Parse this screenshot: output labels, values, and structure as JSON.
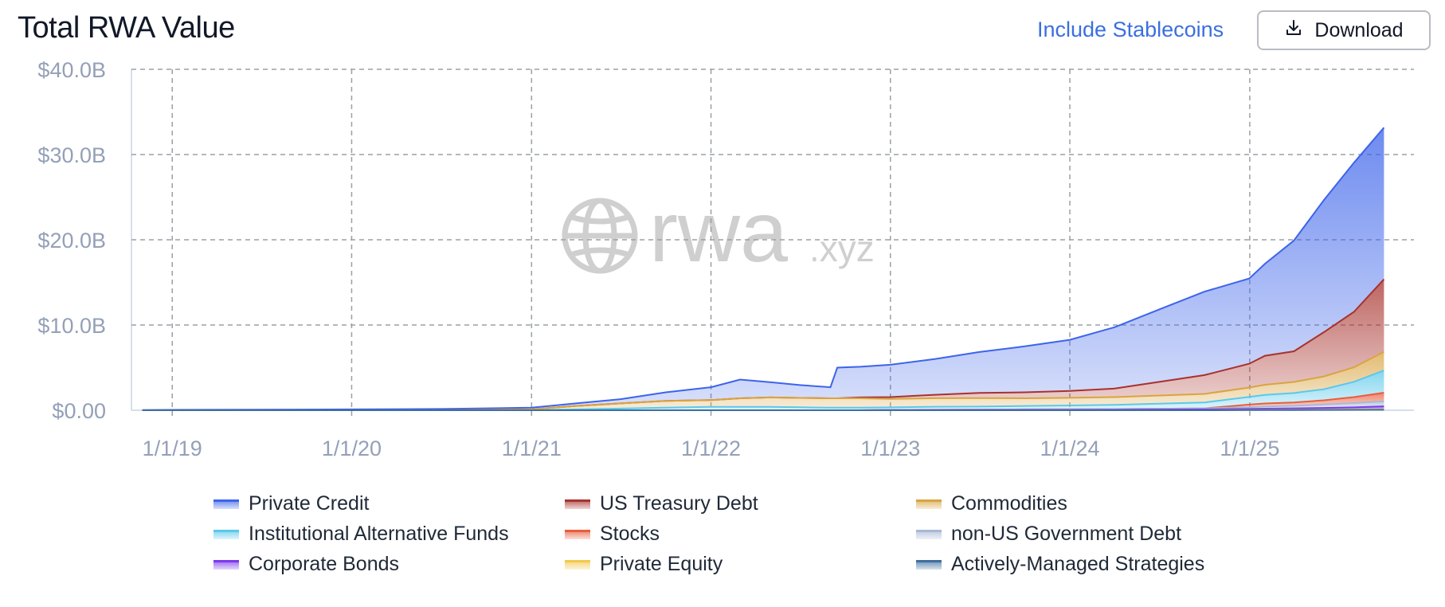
{
  "header": {
    "title": "Total RWA Value",
    "stablecoins_label": "Include Stablecoins",
    "download_label": "Download"
  },
  "watermark": {
    "main": "rwa",
    "suffix": ".xyz"
  },
  "colors": {
    "accent": "#3b6fe0"
  },
  "chart_data": {
    "type": "area",
    "stacked": true,
    "x": [
      "2018-11-01",
      "2019-01-01",
      "2019-07-01",
      "2020-01-01",
      "2020-07-01",
      "2021-01-01",
      "2021-04-01",
      "2021-07-01",
      "2021-10-01",
      "2022-01-01",
      "2022-03-01",
      "2022-05-01",
      "2022-07-01",
      "2022-09-01",
      "2022-09-15",
      "2022-11-01",
      "2023-01-01",
      "2023-04-01",
      "2023-07-01",
      "2023-10-01",
      "2024-01-01",
      "2024-04-01",
      "2024-07-01",
      "2024-10-01",
      "2024-12-31",
      "2025-02-01",
      "2025-04-01",
      "2025-06-01",
      "2025-08-01",
      "2025-10-01"
    ],
    "series": [
      {
        "name": "Actively-Managed Strategies",
        "color": "#3e6f9e",
        "values": [
          0,
          0,
          0,
          0,
          0,
          0,
          0,
          0,
          0,
          0,
          0,
          0,
          0,
          0,
          0,
          0,
          0,
          0,
          0,
          0,
          0,
          0,
          0,
          0,
          0.02,
          0.03,
          0.03,
          0.04,
          0.05,
          0.06
        ]
      },
      {
        "name": "Private Equity",
        "color": "#f2c94c",
        "values": [
          0,
          0,
          0,
          0,
          0,
          0,
          0,
          0,
          0,
          0,
          0,
          0,
          0,
          0,
          0,
          0,
          0,
          0,
          0,
          0,
          0,
          0,
          0,
          0,
          0.02,
          0.02,
          0.03,
          0.03,
          0.04,
          0.05
        ]
      },
      {
        "name": "Corporate Bonds",
        "color": "#7c3aed",
        "values": [
          0,
          0,
          0,
          0,
          0,
          0,
          0,
          0,
          0,
          0,
          0,
          0,
          0,
          0,
          0,
          0,
          0.02,
          0.03,
          0.04,
          0.05,
          0.05,
          0.06,
          0.08,
          0.1,
          0.12,
          0.14,
          0.16,
          0.2,
          0.25,
          0.35
        ]
      },
      {
        "name": "non-US Government Debt",
        "color": "#a9b8d6",
        "values": [
          0,
          0,
          0,
          0,
          0,
          0,
          0,
          0,
          0,
          0,
          0,
          0,
          0,
          0,
          0,
          0,
          0.02,
          0.03,
          0.04,
          0.05,
          0.06,
          0.08,
          0.1,
          0.12,
          0.2,
          0.25,
          0.3,
          0.4,
          0.5,
          0.6
        ]
      },
      {
        "name": "Stocks",
        "color": "#e85d3c",
        "values": [
          0,
          0,
          0,
          0,
          0,
          0,
          0,
          0,
          0,
          0,
          0,
          0,
          0,
          0,
          0,
          0,
          0,
          0,
          0,
          0,
          0,
          0,
          0,
          0,
          0.3,
          0.35,
          0.4,
          0.5,
          0.7,
          1.0
        ]
      },
      {
        "name": "Institutional Alternative Funds",
        "color": "#5bc8eb",
        "values": [
          0,
          0,
          0,
          0,
          0,
          0,
          0.1,
          0.2,
          0.3,
          0.4,
          0.4,
          0.4,
          0.35,
          0.3,
          0.3,
          0.3,
          0.3,
          0.35,
          0.35,
          0.4,
          0.45,
          0.5,
          0.6,
          0.7,
          0.9,
          1.0,
          1.1,
          1.3,
          1.8,
          2.6
        ]
      },
      {
        "name": "Commodities",
        "color": "#d9a441",
        "values": [
          0,
          0,
          0,
          0,
          0,
          0.1,
          0.4,
          0.6,
          0.8,
          0.8,
          1.0,
          1.1,
          1.1,
          1.1,
          1.1,
          1.1,
          1.0,
          1.0,
          1.0,
          0.9,
          0.9,
          0.9,
          0.95,
          1.0,
          1.1,
          1.2,
          1.3,
          1.5,
          1.7,
          2.2
        ]
      },
      {
        "name": "US Treasury Debt",
        "color": "#a8322d",
        "values": [
          0,
          0,
          0,
          0,
          0,
          0,
          0,
          0,
          0,
          0,
          0,
          0,
          0,
          0,
          0,
          0.1,
          0.2,
          0.4,
          0.6,
          0.7,
          0.8,
          1.0,
          1.6,
          2.2,
          2.8,
          3.4,
          3.6,
          5.2,
          6.5,
          8.5
        ]
      },
      {
        "name": "Private Credit",
        "color": "#3d64ea",
        "values": [
          0.03,
          0.05,
          0.07,
          0.1,
          0.15,
          0.2,
          0.3,
          0.5,
          1.0,
          1.5,
          2.2,
          1.8,
          1.5,
          1.3,
          3.6,
          3.6,
          3.8,
          4.2,
          4.8,
          5.4,
          6.0,
          7.2,
          8.5,
          9.8,
          10.0,
          10.8,
          13.0,
          15.5,
          17.5,
          17.8
        ]
      }
    ],
    "y_ticks": [
      "$0.00",
      "$10.0B",
      "$20.0B",
      "$30.0B",
      "$40.0B"
    ],
    "ylim": [
      0,
      40
    ],
    "x_ticks": [
      {
        "date": "2019-01-01",
        "label": "1/1/19"
      },
      {
        "date": "2020-01-01",
        "label": "1/1/20"
      },
      {
        "date": "2021-01-01",
        "label": "1/1/21"
      },
      {
        "date": "2022-01-01",
        "label": "1/1/22"
      },
      {
        "date": "2023-01-01",
        "label": "1/1/23"
      },
      {
        "date": "2024-01-01",
        "label": "1/1/24"
      },
      {
        "date": "2025-01-01",
        "label": "1/1/25"
      }
    ],
    "grid": true,
    "legend_position": "bottom",
    "legend": [
      {
        "name": "Private Credit",
        "color": "#3d64ea"
      },
      {
        "name": "US Treasury Debt",
        "color": "#a8322d"
      },
      {
        "name": "Commodities",
        "color": "#d9a441"
      },
      {
        "name": "Institutional Alternative Funds",
        "color": "#5bc8eb"
      },
      {
        "name": "Stocks",
        "color": "#e85d3c"
      },
      {
        "name": "non-US Government Debt",
        "color": "#a9b8d6"
      },
      {
        "name": "Corporate Bonds",
        "color": "#7c3aed"
      },
      {
        "name": "Private Equity",
        "color": "#f2c94c"
      },
      {
        "name": "Actively-Managed Strategies",
        "color": "#3e6f9e"
      }
    ]
  }
}
